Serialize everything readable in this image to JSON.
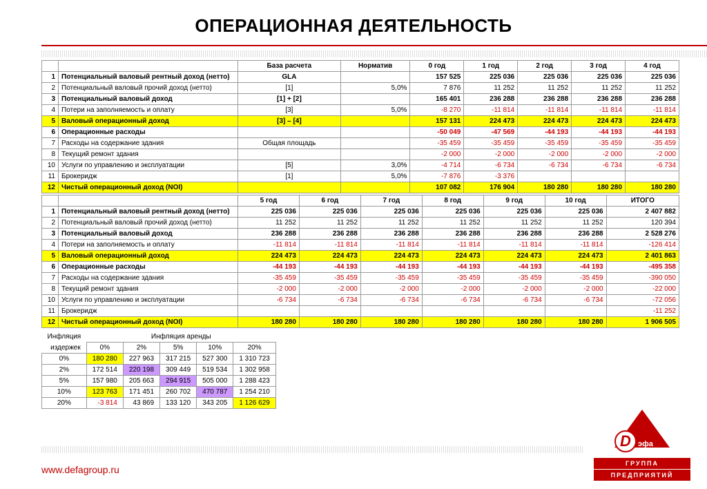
{
  "title": "ОПЕРАЦИОННАЯ ДЕЯТЕЛЬНОСТЬ",
  "url": "www.defagroup.ru",
  "logo": {
    "letter": "D",
    "suffix": "эфа",
    "line1": "ГРУППА",
    "line2": "ПРЕДПРИЯТИЙ"
  },
  "table1": {
    "headers": [
      "",
      "",
      "База расчета",
      "Норматив",
      "0 год",
      "1 год",
      "2 год",
      "3 год",
      "4 год"
    ],
    "rows": [
      {
        "n": "1",
        "lbl": "Потенциальный валовый рентный доход (нетто)",
        "b": "GLA",
        "norm": "",
        "v": [
          "157 525",
          "225 036",
          "225 036",
          "225 036",
          "225 036"
        ],
        "bold": true
      },
      {
        "n": "2",
        "lbl": "Потенциальный валовый прочий доход (нетто)",
        "b": "[1]",
        "norm": "5,0%",
        "v": [
          "7 876",
          "11 252",
          "11 252",
          "11 252",
          "11 252"
        ]
      },
      {
        "n": "3",
        "lbl": "Потенциальный валовый доход",
        "b": "[1] + [2]",
        "norm": "",
        "v": [
          "165 401",
          "236 288",
          "236 288",
          "236 288",
          "236 288"
        ],
        "bold": true
      },
      {
        "n": "4",
        "lbl": "Потери на заполняемость и оплату",
        "b": "[3]",
        "norm": "5,0%",
        "v": [
          "-8 270",
          "-11 814",
          "-11 814",
          "-11 814",
          "-11 814"
        ],
        "neg": true
      },
      {
        "n": "5",
        "lbl": "Валовый операционный доход",
        "b": "[3] – [4]",
        "norm": "",
        "v": [
          "157 131",
          "224 473",
          "224 473",
          "224 473",
          "224 473"
        ],
        "yellow": true
      },
      {
        "n": "6",
        "lbl": "Операционные расходы",
        "b": "",
        "norm": "",
        "v": [
          "-50 049",
          "-47 569",
          "-44 193",
          "-44 193",
          "-44 193"
        ],
        "bold": true,
        "neg": true
      },
      {
        "n": "7",
        "lbl": "   Расходы на содержание здания",
        "b": "Общая площадь",
        "norm": "",
        "v": [
          "-35 459",
          "-35 459",
          "-35 459",
          "-35 459",
          "-35 459"
        ],
        "neg": true
      },
      {
        "n": "8",
        "lbl": "   Текущий ремонт здания",
        "b": "",
        "norm": "",
        "v": [
          "-2 000",
          "-2 000",
          "-2 000",
          "-2 000",
          "-2 000"
        ],
        "neg": true
      },
      {
        "n": "10",
        "lbl": "   Услуги по управлению и эксплуатации",
        "b": "[5]",
        "norm": "3,0%",
        "v": [
          "-4 714",
          "-6 734",
          "-6 734",
          "-6 734",
          "-6 734"
        ],
        "neg": true
      },
      {
        "n": "11",
        "lbl": "   Брокеридж",
        "b": "[1]",
        "norm": "5,0%",
        "v": [
          "-7 876",
          "-3 376",
          "",
          "",
          ""
        ],
        "neg": true
      },
      {
        "n": "12",
        "lbl": "Чистый операционный доход (NOI)",
        "b": "",
        "norm": "",
        "v": [
          "107 082",
          "176 904",
          "180 280",
          "180 280",
          "180 280"
        ],
        "yellow": true
      }
    ]
  },
  "table2": {
    "headers": [
      "",
      "",
      "5 год",
      "6 год",
      "7 год",
      "8 год",
      "9 год",
      "10 год",
      "ИТОГО"
    ],
    "rows": [
      {
        "n": "1",
        "lbl": "Потенциальный валовый рентный доход (нетто)",
        "v": [
          "225 036",
          "225 036",
          "225 036",
          "225 036",
          "225 036",
          "225 036",
          "2 407 882"
        ],
        "bold": true
      },
      {
        "n": "2",
        "lbl": "Потенциальный валовый прочий доход (нетто)",
        "v": [
          "11 252",
          "11 252",
          "11 252",
          "11 252",
          "11 252",
          "11 252",
          "120 394"
        ]
      },
      {
        "n": "3",
        "lbl": "Потенциальный валовый доход",
        "v": [
          "236 288",
          "236 288",
          "236 288",
          "236 288",
          "236 288",
          "236 288",
          "2 528 276"
        ],
        "bold": true
      },
      {
        "n": "4",
        "lbl": "Потери на заполняемость и оплату",
        "v": [
          "-11 814",
          "-11 814",
          "-11 814",
          "-11 814",
          "-11 814",
          "-11 814",
          "-126 414"
        ],
        "neg": true
      },
      {
        "n": "5",
        "lbl": "Валовый операционный доход",
        "v": [
          "224 473",
          "224 473",
          "224 473",
          "224 473",
          "224 473",
          "224 473",
          "2 401 863"
        ],
        "yellow": true
      },
      {
        "n": "6",
        "lbl": "Операционные расходы",
        "v": [
          "-44 193",
          "-44 193",
          "-44 193",
          "-44 193",
          "-44 193",
          "-44 193",
          "-495 358"
        ],
        "bold": true,
        "neg": true
      },
      {
        "n": "7",
        "lbl": "   Расходы на содержание здания",
        "v": [
          "-35 459",
          "-35 459",
          "-35 459",
          "-35 459",
          "-35 459",
          "-35 459",
          "-390 050"
        ],
        "neg": true
      },
      {
        "n": "8",
        "lbl": "   Текущий ремонт здания",
        "v": [
          "-2 000",
          "-2 000",
          "-2 000",
          "-2 000",
          "-2 000",
          "-2 000",
          "-22 000"
        ],
        "neg": true
      },
      {
        "n": "10",
        "lbl": "   Услуги по управлению и эксплуатации",
        "v": [
          "-6 734",
          "-6 734",
          "-6 734",
          "-6 734",
          "-6 734",
          "-6 734",
          "-72 056"
        ],
        "neg": true
      },
      {
        "n": "11",
        "lbl": "   Брокеридж",
        "v": [
          "",
          "",
          "",
          "",
          "",
          "",
          "-11 252"
        ],
        "neg": true
      },
      {
        "n": "12",
        "lbl": "Чистый операционный доход (NOI)",
        "v": [
          "180 280",
          "180 280",
          "180 280",
          "180 280",
          "180 280",
          "180 280",
          "1 906 505"
        ],
        "yellow": true
      }
    ]
  },
  "sens": {
    "topLabel": "Инфляция аренды",
    "leftLabel1": "Инфляция",
    "leftLabel2": "издержек",
    "cols": [
      "0%",
      "2%",
      "5%",
      "10%",
      "20%"
    ],
    "rows": [
      {
        "h": "0%",
        "v": [
          "180 280",
          "227 963",
          "317 215",
          "527 300",
          "1 310 723"
        ],
        "d": [
          0
        ]
      },
      {
        "h": "2%",
        "v": [
          "172 514",
          "220 198",
          "309 449",
          "519 534",
          "1 302 958"
        ],
        "d": [
          1
        ]
      },
      {
        "h": "5%",
        "v": [
          "157 980",
          "205 663",
          "294 915",
          "505 000",
          "1 288 423"
        ],
        "d": [
          2
        ]
      },
      {
        "h": "10%",
        "v": [
          "123 763",
          "171 451",
          "260 702",
          "470 787",
          "1 254 210"
        ],
        "d": [
          0,
          3
        ]
      },
      {
        "h": "20%",
        "v": [
          "-3 814",
          "43 869",
          "133 120",
          "343 205",
          "1 126 629"
        ],
        "d": [
          4
        ],
        "neg": [
          0
        ]
      }
    ]
  }
}
